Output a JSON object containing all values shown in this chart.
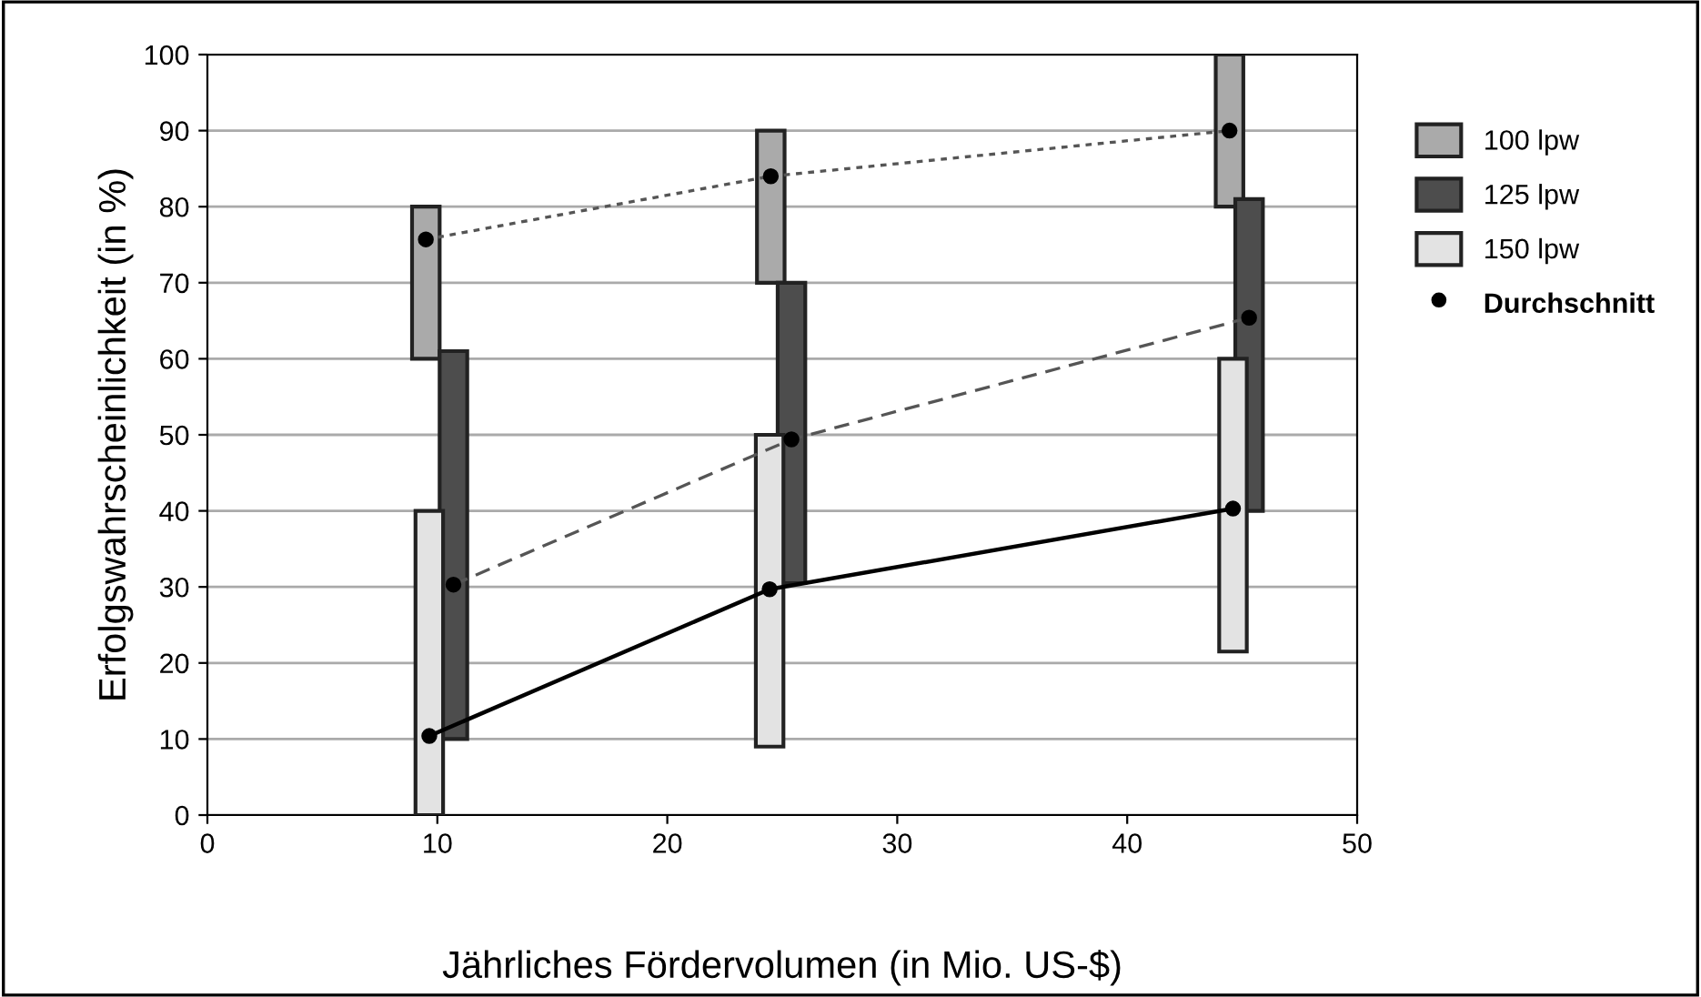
{
  "chart_data": {
    "type": "bar",
    "xlabel": "Jährliches Fördervolumen (in Mio. US-$)",
    "ylabel": "Erfolgswahrscheinlichkeit (in %)",
    "xlim": [
      0,
      50
    ],
    "xticks": [
      0,
      10,
      20,
      30,
      40,
      50
    ],
    "ylim": [
      0,
      100
    ],
    "yticks": [
      0,
      10,
      20,
      30,
      40,
      50,
      60,
      70,
      80,
      90,
      100
    ],
    "grid": "y",
    "legend": "right",
    "series": [
      {
        "name": "100 lpw",
        "color": "#aaaaaa",
        "x": [
          9.5,
          24.5,
          44.45
        ],
        "base": [
          60,
          70,
          80
        ],
        "values": [
          20,
          20,
          20
        ]
      },
      {
        "name": "125 lpw",
        "color": "#4d4d4d",
        "x": [
          10.7,
          25.4,
          45.3
        ],
        "base": [
          10,
          30.5,
          40
        ],
        "values": [
          51,
          39.5,
          41
        ]
      },
      {
        "name": "150 lpw",
        "color": "#e3e3e3",
        "x": [
          9.65,
          24.45,
          44.6
        ],
        "base": [
          0,
          9,
          21.5
        ],
        "values": [
          40,
          41,
          38.5
        ]
      },
      {
        "type": "line",
        "color": "#555555",
        "line_style": "dotted",
        "marker": "none",
        "x": [
          9.5,
          24.5,
          44.45
        ],
        "values": [
          75.7,
          84,
          90
        ]
      },
      {
        "type": "line",
        "color": "#555555",
        "line_style": "dashed",
        "marker": "none",
        "x": [
          10.7,
          25.4,
          45.3
        ],
        "values": [
          30.3,
          49.4,
          65.4
        ]
      },
      {
        "type": "line",
        "color": "#000000",
        "line_style": "solid",
        "marker": "none",
        "x": [
          9.65,
          24.45,
          44.6
        ],
        "values": [
          10.4,
          29.7,
          40.3
        ]
      },
      {
        "type": "scatter",
        "name": "Durchschnitt",
        "color": "#000000",
        "marker": "circle",
        "x": [
          9.5,
          24.5,
          44.45,
          10.7,
          25.4,
          45.3,
          9.65,
          24.45,
          44.6
        ],
        "values": [
          75.7,
          84,
          90,
          30.3,
          49.4,
          65.4,
          10.4,
          29.7,
          40.3
        ]
      }
    ]
  }
}
